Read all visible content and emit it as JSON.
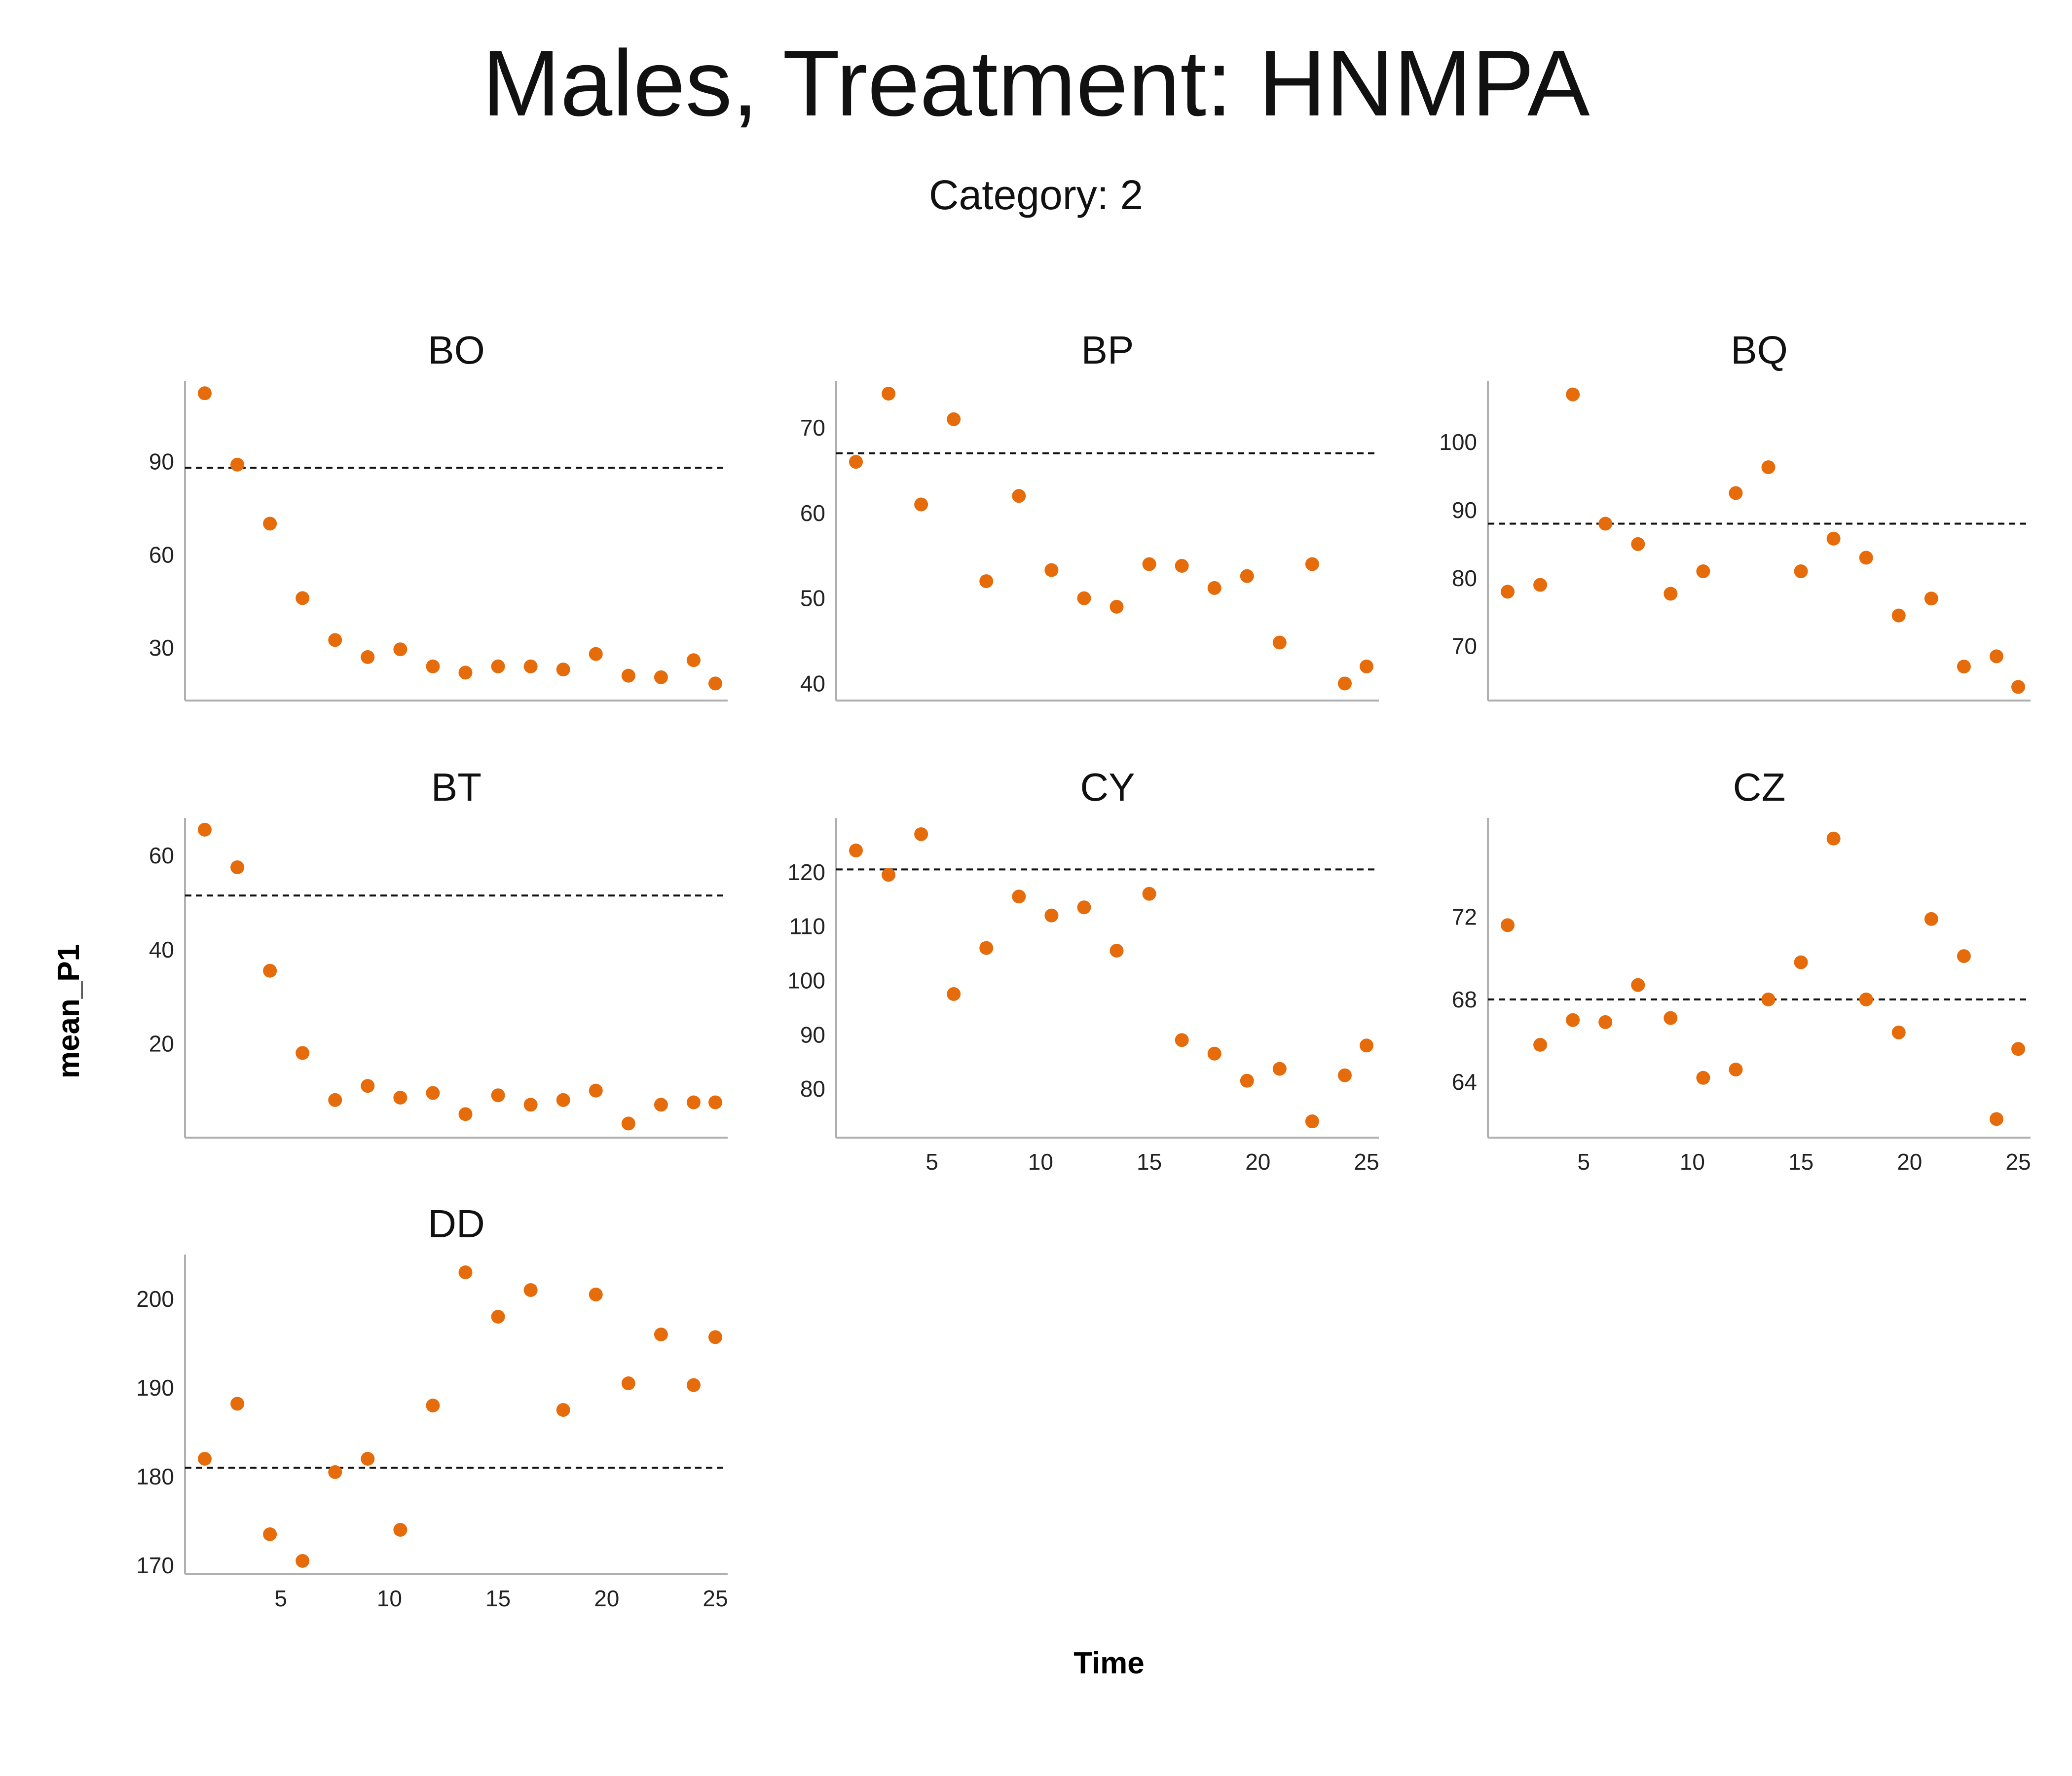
{
  "title": "Males, Treatment: HNMPA",
  "subtitle": "Category: 2",
  "colors": {
    "point": "#e66b0a",
    "axis": "#b0b0b0",
    "reference_line": "#111111"
  },
  "chart_data": {
    "type": "scatter",
    "xlabel": "Time",
    "ylabel": "mean_P1",
    "x": [
      1.5,
      3,
      4.5,
      6,
      7.5,
      9,
      10.5,
      12,
      13.5,
      15,
      16.5,
      18,
      19.5,
      21,
      22.5,
      24,
      25
    ],
    "xlim": [
      0,
      26
    ],
    "xticks": [
      5,
      10,
      15,
      20,
      25
    ],
    "reference_line": "dashed horizontal line (mean)",
    "panels": [
      {
        "name": "BO",
        "ylim": [
          13,
          116
        ],
        "yticks": [
          30,
          60,
          90
        ],
        "mean": 88,
        "values": [
          112,
          89,
          70,
          46,
          32.5,
          27,
          29.5,
          24,
          22,
          24,
          24,
          23,
          28,
          21,
          20.5,
          26,
          18.5
        ]
      },
      {
        "name": "BP",
        "ylim": [
          38,
          75.5
        ],
        "yticks": [
          40,
          50,
          60,
          70
        ],
        "mean": 67,
        "values": [
          66,
          74,
          61,
          71,
          52,
          62,
          53.3,
          50,
          49,
          54,
          53.8,
          51.2,
          52.6,
          44.8,
          54,
          40,
          42
        ]
      },
      {
        "name": "BQ",
        "ylim": [
          62,
          109
        ],
        "yticks": [
          70,
          80,
          90,
          100
        ],
        "mean": 88,
        "values": [
          78,
          79,
          107,
          88,
          85,
          77.7,
          81,
          92.5,
          96.3,
          81,
          85.8,
          83,
          74.5,
          77,
          67,
          68.5,
          64
        ]
      },
      {
        "name": "BT",
        "ylim": [
          0,
          68
        ],
        "yticks": [
          20,
          40,
          60
        ],
        "mean": 51.5,
        "values": [
          65.5,
          57.5,
          35.5,
          18,
          8,
          11,
          8.5,
          9.5,
          5,
          9,
          7,
          8,
          10,
          3,
          7,
          7.5,
          7.5
        ]
      },
      {
        "name": "CY",
        "ylim": [
          71,
          130
        ],
        "yticks": [
          80,
          90,
          100,
          110,
          120
        ],
        "mean": 120.5,
        "values": [
          124,
          119.5,
          127,
          97.5,
          106,
          115.5,
          112,
          113.5,
          105.5,
          116,
          89,
          86.5,
          81.5,
          83.7,
          74,
          82.5,
          88
        ]
      },
      {
        "name": "CZ",
        "ylim": [
          61.3,
          76.8
        ],
        "yticks": [
          64,
          68,
          72
        ],
        "mean": 68,
        "values": [
          71.6,
          65.8,
          67,
          66.9,
          68.7,
          67.1,
          64.2,
          64.6,
          68,
          69.8,
          75.8,
          68,
          66.4,
          71.9,
          70.1,
          62.2,
          65.6
        ]
      },
      {
        "name": "DD",
        "ylim": [
          169,
          205
        ],
        "yticks": [
          170,
          180,
          190,
          200
        ],
        "mean": 181,
        "values": [
          182,
          188.2,
          173.5,
          170.5,
          180.5,
          182,
          174,
          188,
          203,
          198,
          201,
          187.5,
          200.5,
          190.5,
          196,
          190.3,
          195.7
        ]
      }
    ]
  }
}
